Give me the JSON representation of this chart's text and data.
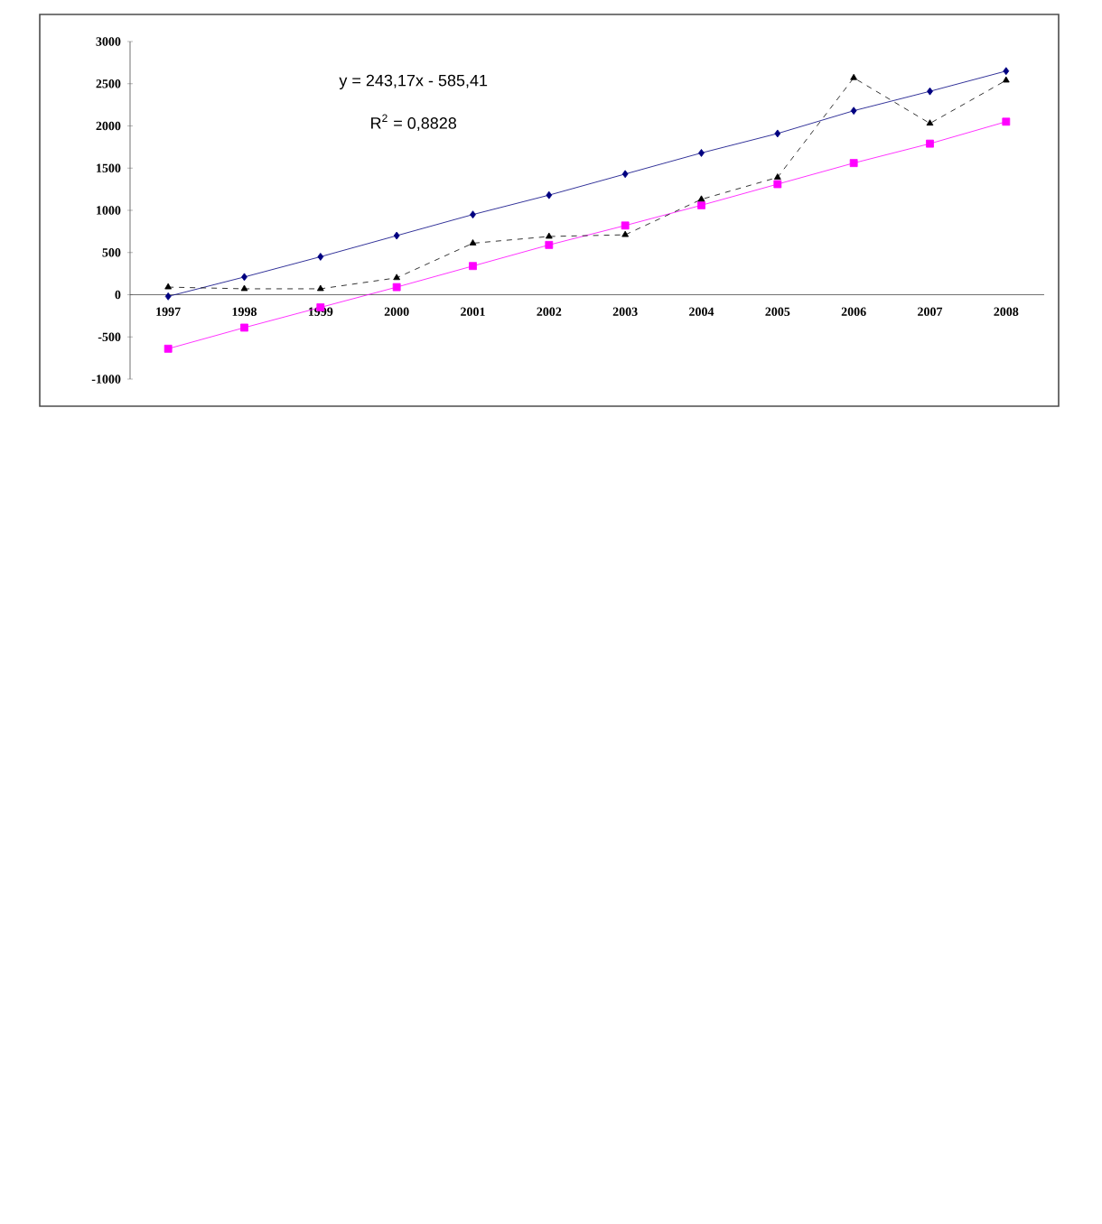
{
  "chart_data": {
    "type": "line",
    "categories": [
      "1997",
      "1998",
      "1999",
      "2000",
      "2001",
      "2002",
      "2003",
      "2004",
      "2005",
      "2006",
      "2007",
      "2008"
    ],
    "series": [
      {
        "color": "#000080",
        "marker": "diamond",
        "line_style": "solid",
        "values": [
          -20,
          210,
          450,
          700,
          950,
          1180,
          1430,
          1680,
          1910,
          2180,
          2410,
          2650
        ]
      },
      {
        "color": "#ff00ff",
        "marker": "square",
        "line_style": "solid",
        "values": [
          -640,
          -390,
          -150,
          90,
          340,
          590,
          820,
          1060,
          1310,
          1560,
          1790,
          2050
        ]
      },
      {
        "color": "#000000",
        "marker": "triangle",
        "line_style": "dashed",
        "values": [
          90,
          70,
          70,
          200,
          610,
          690,
          710,
          1130,
          1390,
          2570,
          2030,
          2540
        ]
      }
    ],
    "ylim": [
      -1000,
      3000
    ],
    "yticks": [
      -1000,
      -500,
      0,
      500,
      1000,
      1500,
      2000,
      2500,
      3000
    ],
    "grid": false,
    "annotations": [
      "y = 243,17x - 585,41",
      "R$^{2}$ = 0,8828"
    ]
  }
}
